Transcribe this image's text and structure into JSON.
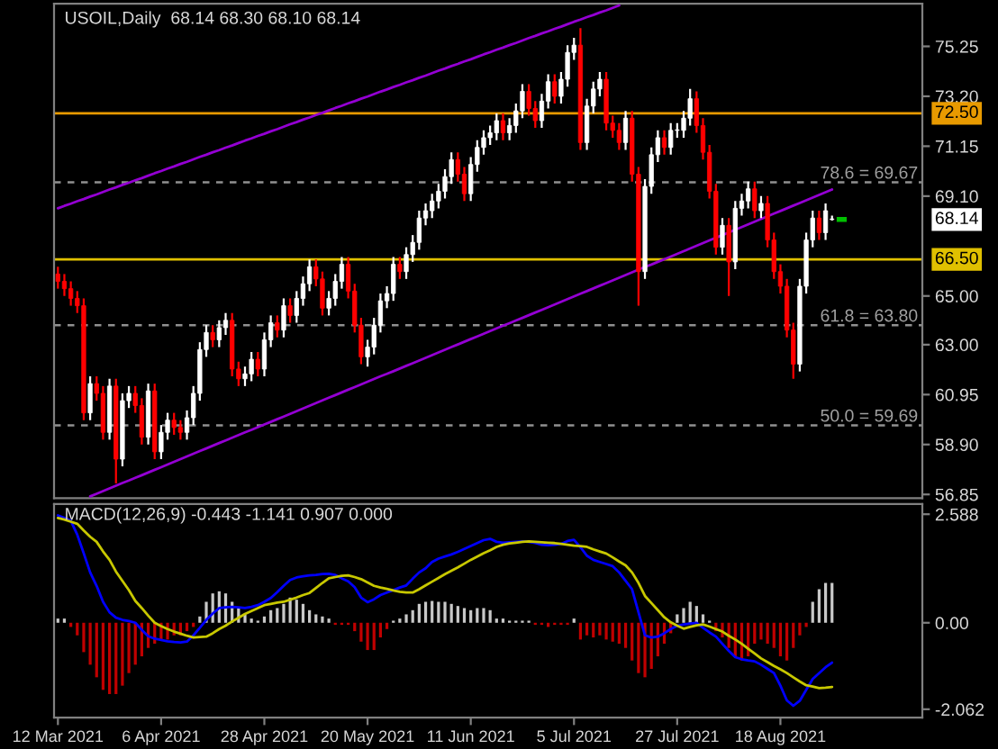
{
  "chart_data": [
    {
      "type": "candlestick",
      "title": "USOIL,Daily  68.14 68.30 68.10 68.14",
      "categories": [
        null,
        null,
        null,
        null,
        null,
        null,
        null,
        null,
        null,
        null,
        null,
        null,
        null,
        null,
        null,
        null,
        null,
        null,
        null,
        null,
        null,
        null,
        null,
        null,
        null,
        null,
        null,
        null,
        null,
        null,
        null,
        null,
        null,
        null,
        null,
        null,
        null,
        null,
        null,
        null,
        null,
        null,
        null,
        null,
        null,
        null,
        null,
        null,
        null,
        null,
        null,
        null,
        null,
        null,
        null,
        null,
        null,
        null,
        null,
        null,
        null,
        null,
        null,
        null,
        null,
        null,
        null,
        null,
        null,
        null,
        null,
        null,
        null,
        null,
        null,
        null,
        null,
        null,
        null,
        null,
        null,
        null,
        null,
        null,
        null,
        null,
        null,
        null,
        null,
        null,
        null,
        null,
        null,
        null,
        null,
        null,
        null,
        null,
        null,
        null,
        null,
        null,
        null,
        null,
        null,
        null,
        null,
        null,
        null,
        null,
        null,
        null,
        null,
        null,
        null,
        null,
        null,
        null,
        null,
        null,
        null
      ],
      "ohlc": [
        [
          65.9,
          66.2,
          65.3,
          65.6
        ],
        [
          65.6,
          65.9,
          65.0,
          65.3
        ],
        [
          65.3,
          65.6,
          64.6,
          64.9
        ],
        [
          64.9,
          65.2,
          64.3,
          64.6
        ],
        [
          64.6,
          64.9,
          59.9,
          60.2
        ],
        [
          60.2,
          61.7,
          59.9,
          61.4
        ],
        [
          61.4,
          61.7,
          60.7,
          61.0
        ],
        [
          61.0,
          61.3,
          59.1,
          59.4
        ],
        [
          59.4,
          61.6,
          59.1,
          61.3
        ],
        [
          61.3,
          61.6,
          57.3,
          58.3
        ],
        [
          58.3,
          61.0,
          58.0,
          60.7
        ],
        [
          60.7,
          61.3,
          60.4,
          61.0
        ],
        [
          61.0,
          61.3,
          60.2,
          60.5
        ],
        [
          60.5,
          60.8,
          58.9,
          59.2
        ],
        [
          59.2,
          61.4,
          58.9,
          61.1
        ],
        [
          61.1,
          61.4,
          58.3,
          58.6
        ],
        [
          58.6,
          59.7,
          58.3,
          59.4
        ],
        [
          59.4,
          60.2,
          59.1,
          59.9
        ],
        [
          59.9,
          60.2,
          59.3,
          59.6
        ],
        [
          59.6,
          59.9,
          59.1,
          59.4
        ],
        [
          59.4,
          60.3,
          59.1,
          60.0
        ],
        [
          60.0,
          61.3,
          59.7,
          61.0
        ],
        [
          61.0,
          63.1,
          60.7,
          62.8
        ],
        [
          62.8,
          63.8,
          62.5,
          63.5
        ],
        [
          63.5,
          63.8,
          62.9,
          63.2
        ],
        [
          63.2,
          64.0,
          62.9,
          63.7
        ],
        [
          63.7,
          64.3,
          63.4,
          64.0
        ],
        [
          64.0,
          64.3,
          61.7,
          62.0
        ],
        [
          62.0,
          62.3,
          61.3,
          61.6
        ],
        [
          61.6,
          62.1,
          61.3,
          61.8
        ],
        [
          61.8,
          62.7,
          61.5,
          62.4
        ],
        [
          62.4,
          62.7,
          61.7,
          62.0
        ],
        [
          62.0,
          63.5,
          61.7,
          63.2
        ],
        [
          63.2,
          64.2,
          62.9,
          63.9
        ],
        [
          63.9,
          64.2,
          63.3,
          63.6
        ],
        [
          63.6,
          64.9,
          63.3,
          64.6
        ],
        [
          64.6,
          64.9,
          63.9,
          64.2
        ],
        [
          64.2,
          65.2,
          63.9,
          64.9
        ],
        [
          64.9,
          65.8,
          64.6,
          65.5
        ],
        [
          65.5,
          66.5,
          65.2,
          66.2
        ],
        [
          66.2,
          66.5,
          65.4,
          65.7
        ],
        [
          65.7,
          66.0,
          64.2,
          64.5
        ],
        [
          64.5,
          65.2,
          64.2,
          64.9
        ],
        [
          64.9,
          65.9,
          64.6,
          65.6
        ],
        [
          65.6,
          66.6,
          65.3,
          66.3
        ],
        [
          66.3,
          66.6,
          64.9,
          65.2
        ],
        [
          65.2,
          65.5,
          63.5,
          63.8
        ],
        [
          63.8,
          64.1,
          62.2,
          62.5
        ],
        [
          62.5,
          63.2,
          62.1,
          62.9
        ],
        [
          62.9,
          64.1,
          62.6,
          63.8
        ],
        [
          63.8,
          65.1,
          63.5,
          64.8
        ],
        [
          64.8,
          65.4,
          64.5,
          65.1
        ],
        [
          65.1,
          66.6,
          64.8,
          66.3
        ],
        [
          66.3,
          66.6,
          65.7,
          66.0
        ],
        [
          66.0,
          67.0,
          65.7,
          66.7
        ],
        [
          66.7,
          67.5,
          66.4,
          67.2
        ],
        [
          67.2,
          68.5,
          66.9,
          68.2
        ],
        [
          68.2,
          68.8,
          67.9,
          68.5
        ],
        [
          68.5,
          69.2,
          68.2,
          68.9
        ],
        [
          68.9,
          69.6,
          68.6,
          69.3
        ],
        [
          69.3,
          70.2,
          69.0,
          69.9
        ],
        [
          69.9,
          70.9,
          69.6,
          70.6
        ],
        [
          70.6,
          70.9,
          69.7,
          70.0
        ],
        [
          70.0,
          70.3,
          68.9,
          69.2
        ],
        [
          69.2,
          70.7,
          68.9,
          70.4
        ],
        [
          70.4,
          71.4,
          70.1,
          71.1
        ],
        [
          71.1,
          71.8,
          70.8,
          71.5
        ],
        [
          71.5,
          72.0,
          71.2,
          71.7
        ],
        [
          71.7,
          72.5,
          71.4,
          72.2
        ],
        [
          72.2,
          72.5,
          71.4,
          71.7
        ],
        [
          71.7,
          72.3,
          71.4,
          72.0
        ],
        [
          72.0,
          72.9,
          71.7,
          72.6
        ],
        [
          72.6,
          73.7,
          72.3,
          73.4
        ],
        [
          73.4,
          73.7,
          72.4,
          72.7
        ],
        [
          72.7,
          73.0,
          71.9,
          72.2
        ],
        [
          72.2,
          73.3,
          71.9,
          73.0
        ],
        [
          73.0,
          74.1,
          72.7,
          73.8
        ],
        [
          73.8,
          74.1,
          72.9,
          73.2
        ],
        [
          73.2,
          74.2,
          72.9,
          73.9
        ],
        [
          73.9,
          75.3,
          73.6,
          75.0
        ],
        [
          75.0,
          75.6,
          74.7,
          75.3
        ],
        [
          75.3,
          76.0,
          71.0,
          71.3
        ],
        [
          71.3,
          73.1,
          71.0,
          72.8
        ],
        [
          72.8,
          73.8,
          72.5,
          73.5
        ],
        [
          73.5,
          74.2,
          73.2,
          73.9
        ],
        [
          73.9,
          74.2,
          71.8,
          72.1
        ],
        [
          72.1,
          72.4,
          71.5,
          71.8
        ],
        [
          71.8,
          72.1,
          71.0,
          71.3
        ],
        [
          71.3,
          72.6,
          71.0,
          72.3
        ],
        [
          72.3,
          72.6,
          69.7,
          70.0
        ],
        [
          70.0,
          70.3,
          64.6,
          66.0
        ],
        [
          66.0,
          69.8,
          65.7,
          69.5
        ],
        [
          69.5,
          71.1,
          69.2,
          70.8
        ],
        [
          70.8,
          71.8,
          70.5,
          71.5
        ],
        [
          71.5,
          71.8,
          70.8,
          71.1
        ],
        [
          71.1,
          72.1,
          70.8,
          71.8
        ],
        [
          71.8,
          72.1,
          71.5,
          71.8
        ],
        [
          71.8,
          72.6,
          71.5,
          72.3
        ],
        [
          72.3,
          73.5,
          72.0,
          73.1
        ],
        [
          73.1,
          73.4,
          71.7,
          72.0
        ],
        [
          72.0,
          72.3,
          70.6,
          70.9
        ],
        [
          70.9,
          71.2,
          69.0,
          69.3
        ],
        [
          69.3,
          69.6,
          66.7,
          67.0
        ],
        [
          67.0,
          68.2,
          66.7,
          67.9
        ],
        [
          67.9,
          68.2,
          65.0,
          66.4
        ],
        [
          66.4,
          68.9,
          66.1,
          68.6
        ],
        [
          68.6,
          69.2,
          68.3,
          68.9
        ],
        [
          68.9,
          69.7,
          68.6,
          69.4
        ],
        [
          69.4,
          69.7,
          68.2,
          68.5
        ],
        [
          68.5,
          69.1,
          68.2,
          68.8
        ],
        [
          68.8,
          69.1,
          67.0,
          67.3
        ],
        [
          67.3,
          67.6,
          65.7,
          66.0
        ],
        [
          66.0,
          66.3,
          65.1,
          65.4
        ],
        [
          65.4,
          65.7,
          63.3,
          63.6
        ],
        [
          63.6,
          63.9,
          61.6,
          62.2
        ],
        [
          62.2,
          65.7,
          61.9,
          65.4
        ],
        [
          65.4,
          67.6,
          65.1,
          67.3
        ],
        [
          67.3,
          68.5,
          67.0,
          68.2
        ],
        [
          68.2,
          68.5,
          67.3,
          67.6
        ],
        [
          67.6,
          68.8,
          67.3,
          68.5
        ],
        [
          68.14,
          68.3,
          68.1,
          68.14
        ]
      ],
      "series": [
        {
          "type": "line",
          "color": "#9400d3",
          "values": [
            68.6,
            68.7,
            68.79,
            68.89,
            68.98,
            69.08,
            69.17,
            69.27,
            69.37,
            69.46,
            69.56,
            69.65,
            69.75,
            69.84,
            69.94,
            70.04,
            70.13,
            70.23,
            70.32,
            70.42,
            70.51,
            70.61,
            70.71,
            70.8,
            70.9,
            70.99,
            71.09,
            71.18,
            71.28,
            71.38,
            71.47,
            71.57,
            71.66,
            71.76,
            71.85,
            71.95,
            72.05,
            72.14,
            72.24,
            72.33,
            72.43,
            72.52,
            72.62,
            72.72,
            72.81,
            72.91,
            73.0,
            73.1,
            73.19,
            73.29,
            73.39,
            73.48,
            73.58,
            73.67,
            73.77,
            73.86,
            73.96,
            74.05,
            74.15,
            74.25,
            74.34,
            74.44,
            74.53,
            74.63,
            74.72,
            74.82,
            74.92,
            75.01,
            75.11,
            75.2,
            75.3,
            75.39,
            75.49,
            75.59,
            75.68,
            75.78,
            75.87,
            75.97,
            76.06,
            76.16,
            76.26,
            76.35,
            76.45,
            76.54,
            76.64,
            76.73,
            76.83,
            76.93,
            null,
            null,
            null,
            null,
            null,
            null,
            null,
            null,
            null,
            null,
            null,
            null,
            null,
            null,
            null,
            null,
            null,
            null,
            null,
            null,
            null,
            null,
            null,
            null,
            null,
            null,
            null,
            null,
            null,
            null,
            null,
            null,
            null
          ]
        },
        {
          "type": "line",
          "color": "#9400d3",
          "values": [
            null,
            null,
            null,
            null,
            null,
            56.77,
            56.88,
            56.99,
            57.1,
            57.21,
            57.32,
            57.42,
            57.53,
            57.64,
            57.75,
            57.86,
            57.97,
            58.08,
            58.19,
            58.3,
            58.41,
            58.52,
            58.63,
            58.74,
            58.85,
            58.96,
            59.07,
            59.18,
            59.29,
            59.4,
            59.5,
            59.61,
            59.72,
            59.83,
            59.94,
            60.05,
            60.16,
            60.27,
            60.38,
            60.49,
            60.6,
            60.71,
            60.82,
            60.93,
            61.04,
            61.15,
            61.26,
            61.37,
            61.48,
            61.59,
            61.7,
            61.8,
            61.91,
            62.02,
            62.13,
            62.24,
            62.35,
            62.46,
            62.57,
            62.68,
            62.79,
            62.9,
            63.01,
            63.12,
            63.23,
            63.34,
            63.45,
            63.56,
            63.67,
            63.78,
            63.88,
            63.99,
            64.1,
            64.21,
            64.32,
            64.43,
            64.54,
            64.65,
            64.76,
            64.87,
            64.98,
            65.09,
            65.2,
            65.31,
            65.42,
            65.53,
            65.64,
            65.75,
            65.86,
            65.97,
            66.08,
            66.19,
            66.29,
            66.4,
            66.51,
            66.62,
            66.73,
            66.84,
            66.95,
            67.06,
            67.17,
            67.28,
            67.39,
            67.5,
            67.61,
            67.72,
            67.83,
            67.94,
            68.05,
            68.16,
            68.27,
            68.38,
            68.49,
            68.6,
            68.71,
            68.82,
            68.93,
            69.04,
            69.15,
            69.26,
            69.37
          ]
        }
      ],
      "ylim": [
        56.7,
        77.0
      ],
      "yticks": [
        56.85,
        {
          "value": 58.9,
          "label": "58.90"
        },
        60.95,
        {
          "value": 63.0,
          "label": "63.00"
        },
        {
          "value": 65.0,
          "label": "65.00"
        },
        {
          "value": 69.1,
          "label": "69.10"
        },
        71.15,
        {
          "value": 73.2,
          "label": "73.20"
        },
        75.25
      ],
      "ref_lines": [
        {
          "axis": "y",
          "value": 72.5,
          "label": "72.50",
          "color": "#e89a00",
          "line_style": "solid"
        },
        {
          "axis": "y",
          "value": 66.5,
          "label": "66.50",
          "color": "#e0c000",
          "line_style": "solid"
        },
        {
          "axis": "y",
          "value": 69.67,
          "label": "78.6 = 69.67",
          "color": "#909090",
          "line_style": "dashed"
        },
        {
          "axis": "y",
          "value": 63.8,
          "label": "61.8 = 63.80",
          "color": "#909090",
          "line_style": "dashed"
        },
        {
          "axis": "y",
          "value": 59.69,
          "label": "50.0 = 59.69",
          "color": "#909090",
          "line_style": "dashed"
        }
      ],
      "annotations": [
        "68.14"
      ]
    },
    {
      "type": "bar",
      "title": "MACD(12,26,9) -0.443 -1.141 0.907 0.000",
      "categories": [
        "12 Mar 2021",
        null,
        null,
        null,
        null,
        null,
        null,
        null,
        null,
        null,
        null,
        null,
        null,
        null,
        null,
        null,
        "6 Apr 2021",
        null,
        null,
        null,
        null,
        null,
        null,
        null,
        null,
        null,
        null,
        null,
        null,
        null,
        null,
        null,
        "28 Apr 2021",
        null,
        null,
        null,
        null,
        null,
        null,
        null,
        null,
        null,
        null,
        null,
        null,
        null,
        null,
        null,
        "20 May 2021",
        null,
        null,
        null,
        null,
        null,
        null,
        null,
        null,
        null,
        null,
        null,
        null,
        null,
        null,
        null,
        "11 Jun 2021",
        null,
        null,
        null,
        null,
        null,
        null,
        null,
        null,
        null,
        null,
        null,
        null,
        null,
        null,
        null,
        "5 Jul 2021",
        null,
        null,
        null,
        null,
        null,
        null,
        null,
        null,
        null,
        null,
        null,
        null,
        null,
        null,
        null,
        "27 Jul 2021",
        null,
        null,
        null,
        null,
        null,
        null,
        null,
        null,
        null,
        null,
        null,
        null,
        null,
        null,
        null,
        "18 Aug 2021",
        null,
        null,
        null,
        null,
        null,
        null,
        null,
        null
      ],
      "series": [
        {
          "type": "bar",
          "colors": [
            "#c8c8c8",
            "#c8c8c8",
            "#c00000",
            "#c00000",
            "#c00000",
            "#c00000",
            "#c00000",
            "#c00000",
            "#c00000",
            "#c00000",
            "#c00000",
            "#c00000",
            "#c00000",
            "#c00000",
            "#c00000",
            "#c00000",
            "#c00000",
            "#c00000",
            "#c00000",
            "#c00000",
            "#c00000",
            "#c00000",
            "#c8c8c8",
            "#c8c8c8",
            "#c8c8c8",
            "#c8c8c8",
            "#c8c8c8",
            "#c8c8c8",
            "#c8c8c8",
            "#c8c8c8",
            "#c8c8c8",
            "#c8c8c8",
            "#c8c8c8",
            "#c8c8c8",
            "#c8c8c8",
            "#c8c8c8",
            "#c8c8c8",
            "#c8c8c8",
            "#c8c8c8",
            "#c8c8c8",
            "#c8c8c8",
            "#c8c8c8",
            "#c8c8c8",
            "#c00000",
            "#c00000",
            "#c00000",
            "#c00000",
            "#c00000",
            "#c00000",
            "#c00000",
            "#c00000",
            "#c00000",
            "#c8c8c8",
            "#c8c8c8",
            "#c8c8c8",
            "#c8c8c8",
            "#c8c8c8",
            "#c8c8c8",
            "#c8c8c8",
            "#c8c8c8",
            "#c8c8c8",
            "#c8c8c8",
            "#c8c8c8",
            "#c8c8c8",
            "#c8c8c8",
            "#c8c8c8",
            "#c8c8c8",
            "#c8c8c8",
            "#c8c8c8",
            "#c8c8c8",
            "#c8c8c8",
            "#c8c8c8",
            "#c8c8c8",
            "#c8c8c8",
            "#c00000",
            "#c00000",
            "#c00000",
            "#c00000",
            "#c00000",
            "#c00000",
            "#c8c8c8",
            "#c00000",
            "#c00000",
            "#c00000",
            "#c00000",
            "#c00000",
            "#c00000",
            "#c00000",
            "#c00000",
            "#c00000",
            "#c00000",
            "#c00000",
            "#c00000",
            "#c00000",
            "#c00000",
            "#c00000",
            "#c8c8c8",
            "#c8c8c8",
            "#c8c8c8",
            "#c8c8c8",
            "#c8c8c8",
            "#c8c8c8",
            "#c00000",
            "#c00000",
            "#c00000",
            "#c00000",
            "#c00000",
            "#c00000",
            "#c00000",
            "#c00000",
            "#c00000",
            "#c00000",
            "#c00000",
            "#c00000",
            "#c00000",
            "#c00000",
            "#c00000",
            "#c8c8c8",
            "#c8c8c8",
            "#c8c8c8",
            "#c8c8c8"
          ],
          "values": [
            0.1,
            0.1,
            -0.1,
            -0.3,
            -0.7,
            -1.0,
            -1.3,
            -1.6,
            -1.7,
            -1.7,
            -1.5,
            -1.2,
            -1.0,
            -0.8,
            -0.6,
            -0.5,
            -0.4,
            -0.4,
            -0.3,
            -0.3,
            -0.2,
            -0.1,
            0.15,
            0.5,
            0.7,
            0.75,
            0.7,
            0.5,
            0.35,
            0.2,
            0.1,
            0.05,
            0.15,
            0.3,
            0.35,
            0.45,
            0.6,
            0.55,
            0.45,
            0.3,
            0.2,
            0.15,
            0.1,
            -0.05,
            -0.05,
            -0.05,
            -0.2,
            -0.45,
            -0.65,
            -0.65,
            -0.35,
            -0.15,
            0.05,
            0.1,
            0.2,
            0.3,
            0.45,
            0.5,
            0.52,
            0.5,
            0.5,
            0.45,
            0.4,
            0.35,
            0.3,
            0.35,
            0.35,
            0.3,
            0.1,
            0.1,
            0.05,
            0.05,
            0.05,
            0.05,
            -0.05,
            -0.05,
            -0.1,
            -0.05,
            -0.05,
            -0.05,
            0.1,
            -0.4,
            -0.3,
            -0.35,
            -0.3,
            -0.4,
            -0.45,
            -0.5,
            -0.6,
            -0.9,
            -1.2,
            -1.3,
            -1.1,
            -0.8,
            -0.5,
            -0.25,
            0.2,
            0.35,
            0.5,
            0.4,
            0.2,
            0.05,
            -0.2,
            -0.35,
            -0.6,
            -0.8,
            -0.9,
            -0.8,
            -0.5,
            -0.4,
            -0.5,
            -0.6,
            -0.8,
            -0.9,
            -0.6,
            -0.3,
            -0.1,
            0.5,
            0.8,
            0.95,
            0.95
          ]
        },
        {
          "type": "line",
          "color": "#0000ff",
          "values": [
            2.56,
            2.5,
            2.43,
            2.1,
            1.66,
            1.2,
            0.88,
            0.5,
            0.25,
            0.12,
            0.07,
            0.04,
            0.0,
            -0.17,
            -0.32,
            -0.38,
            -0.41,
            -0.44,
            -0.46,
            -0.47,
            -0.45,
            -0.3,
            -0.12,
            0.07,
            0.22,
            0.35,
            0.37,
            0.38,
            0.37,
            0.35,
            0.38,
            0.42,
            0.5,
            0.59,
            0.73,
            0.88,
            1.02,
            1.08,
            1.11,
            1.13,
            1.14,
            1.16,
            1.17,
            1.14,
            1.06,
            0.99,
            0.85,
            0.6,
            0.49,
            0.56,
            0.66,
            0.72,
            0.78,
            0.84,
            0.89,
            1.05,
            1.2,
            1.3,
            1.45,
            1.53,
            1.58,
            1.63,
            1.69,
            1.76,
            1.83,
            1.9,
            1.97,
            2.0,
            1.93,
            1.91,
            1.92,
            1.93,
            1.94,
            1.93,
            1.9,
            1.86,
            1.85,
            1.86,
            1.88,
            1.95,
            1.98,
            1.8,
            1.6,
            1.5,
            1.45,
            1.4,
            1.35,
            1.2,
            1.0,
            0.8,
            0.25,
            -0.3,
            -0.35,
            -0.33,
            -0.25,
            -0.15,
            -0.07,
            -0.04,
            -0.02,
            0.0,
            -0.12,
            -0.23,
            -0.33,
            -0.5,
            -0.67,
            -0.82,
            -0.87,
            -0.9,
            -0.92,
            -1.0,
            -1.1,
            -1.2,
            -1.5,
            -1.85,
            -1.98,
            -1.86,
            -1.6,
            -1.34,
            -1.2,
            -1.06,
            -0.95
          ]
        },
        {
          "type": "line",
          "color": "#c8c800",
          "values": [
            2.5,
            2.46,
            2.41,
            2.36,
            2.2,
            2.05,
            1.93,
            1.7,
            1.5,
            1.22,
            1.0,
            0.78,
            0.52,
            0.35,
            0.17,
            0.0,
            -0.08,
            -0.15,
            -0.21,
            -0.26,
            -0.31,
            -0.35,
            -0.34,
            -0.33,
            -0.25,
            -0.15,
            -0.07,
            0.03,
            0.12,
            0.21,
            0.28,
            0.35,
            0.42,
            0.45,
            0.48,
            0.5,
            0.55,
            0.6,
            0.66,
            0.71,
            0.83,
            0.95,
            1.06,
            1.09,
            1.12,
            1.13,
            1.09,
            1.04,
            0.96,
            0.88,
            0.84,
            0.81,
            0.77,
            0.74,
            0.72,
            0.72,
            0.8,
            0.89,
            0.98,
            1.07,
            1.16,
            1.24,
            1.32,
            1.41,
            1.5,
            1.58,
            1.66,
            1.73,
            1.81,
            1.86,
            1.89,
            1.91,
            1.93,
            1.94,
            1.93,
            1.92,
            1.91,
            1.9,
            1.88,
            1.86,
            1.84,
            1.83,
            1.81,
            1.75,
            1.7,
            1.65,
            1.56,
            1.46,
            1.37,
            1.2,
            0.95,
            0.64,
            0.47,
            0.3,
            0.13,
            0.01,
            -0.07,
            -0.14,
            -0.1,
            -0.06,
            -0.04,
            -0.09,
            -0.15,
            -0.21,
            -0.31,
            -0.4,
            -0.5,
            -0.62,
            -0.73,
            -0.85,
            -0.94,
            -1.03,
            -1.11,
            -1.2,
            -1.3,
            -1.4,
            -1.49,
            -1.52,
            -1.56,
            -1.55,
            -1.53
          ]
        }
      ],
      "ylim": [
        -2.26,
        2.83
      ],
      "yticks": [
        2.588,
        {
          "value": 0,
          "label": "0.00"
        },
        {
          "value": -2.062,
          "label": "-2.062"
        }
      ]
    }
  ]
}
